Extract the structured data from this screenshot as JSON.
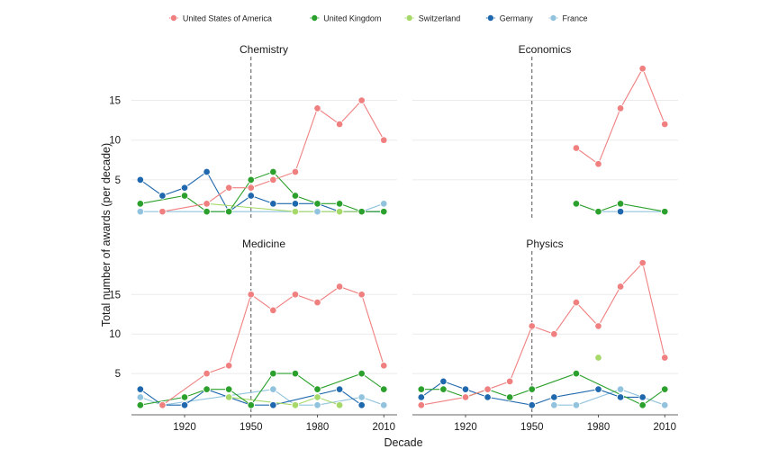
{
  "chart_data": {
    "type": "line",
    "xlabel": "Decade",
    "ylabel": "Total number of awards (per decade)",
    "legend_position": "top",
    "grid": "horizontal",
    "reference_line": {
      "x": 1950,
      "style": "dashed"
    },
    "x_ticks": [
      1920,
      1950,
      1980,
      2010
    ],
    "y_ticks": [
      5,
      10,
      15
    ],
    "xlim": [
      1896,
      2016
    ],
    "ylim": [
      0,
      20.5
    ],
    "series": [
      {
        "name": "United States of America",
        "color": "#f08080"
      },
      {
        "name": "United Kingdom",
        "color": "#2ca02c"
      },
      {
        "name": "Switzerland",
        "color": "#a6d96a"
      },
      {
        "name": "Germany",
        "color": "#1f68ad"
      },
      {
        "name": "France",
        "color": "#91c3de"
      }
    ],
    "panels": [
      {
        "title": "Chemistry",
        "data": {
          "United States of America": [
            [
              1910,
              1
            ],
            [
              1930,
              2
            ],
            [
              1940,
              4
            ],
            [
              1950,
              4
            ],
            [
              1960,
              5
            ],
            [
              1970,
              6
            ],
            [
              1980,
              14
            ],
            [
              1990,
              12
            ],
            [
              2000,
              15
            ],
            [
              2010,
              10
            ]
          ],
          "United Kingdom": [
            [
              1900,
              2
            ],
            [
              1920,
              3
            ],
            [
              1930,
              1
            ],
            [
              1940,
              1
            ],
            [
              1950,
              5
            ],
            [
              1960,
              6
            ],
            [
              1970,
              3
            ],
            [
              1980,
              2
            ],
            [
              1990,
              2
            ],
            [
              2000,
              1
            ],
            [
              2010,
              1
            ]
          ],
          "Switzerland": [
            [
              1930,
              2
            ],
            [
              1970,
              1
            ],
            [
              1990,
              1
            ],
            [
              2000,
              1
            ]
          ],
          "Germany": [
            [
              1900,
              5
            ],
            [
              1910,
              3
            ],
            [
              1920,
              4
            ],
            [
              1930,
              6
            ],
            [
              1940,
              1
            ],
            [
              1950,
              3
            ],
            [
              1960,
              2
            ],
            [
              1970,
              2
            ],
            [
              1980,
              2
            ],
            [
              1990,
              1
            ],
            [
              2000,
              1
            ],
            [
              2010,
              1
            ]
          ],
          "France": [
            [
              1900,
              1
            ],
            [
              1980,
              1
            ],
            [
              1990,
              1
            ],
            [
              2000,
              1
            ],
            [
              2010,
              2
            ]
          ]
        }
      },
      {
        "title": "Economics",
        "data": {
          "United States of America": [
            [
              1970,
              9
            ],
            [
              1980,
              7
            ],
            [
              1990,
              14
            ],
            [
              2000,
              19
            ],
            [
              2010,
              12
            ]
          ],
          "United Kingdom": [
            [
              1970,
              2
            ],
            [
              1980,
              1
            ],
            [
              1990,
              2
            ],
            [
              2010,
              1
            ]
          ],
          "Switzerland": [],
          "Germany": [
            [
              1990,
              1
            ]
          ],
          "France": [
            [
              1980,
              1
            ],
            [
              2010,
              1
            ]
          ]
        }
      },
      {
        "title": "Medicine",
        "data": {
          "United States of America": [
            [
              1910,
              1
            ],
            [
              1930,
              5
            ],
            [
              1940,
              6
            ],
            [
              1950,
              15
            ],
            [
              1960,
              13
            ],
            [
              1970,
              15
            ],
            [
              1980,
              14
            ],
            [
              1990,
              16
            ],
            [
              2000,
              15
            ],
            [
              2010,
              6
            ]
          ],
          "United Kingdom": [
            [
              1900,
              1
            ],
            [
              1920,
              2
            ],
            [
              1930,
              3
            ],
            [
              1940,
              3
            ],
            [
              1950,
              1
            ],
            [
              1960,
              5
            ],
            [
              1970,
              5
            ],
            [
              1980,
              3
            ],
            [
              2000,
              5
            ],
            [
              2010,
              3
            ]
          ],
          "Switzerland": [
            [
              1940,
              2
            ],
            [
              1970,
              1
            ],
            [
              1980,
              2
            ],
            [
              1990,
              1
            ]
          ],
          "Germany": [
            [
              1900,
              3
            ],
            [
              1910,
              1
            ],
            [
              1920,
              1
            ],
            [
              1930,
              3
            ],
            [
              1950,
              1
            ],
            [
              1960,
              1
            ],
            [
              1990,
              3
            ],
            [
              2000,
              1
            ]
          ],
          "France": [
            [
              1900,
              2
            ],
            [
              1910,
              1
            ],
            [
              1960,
              3
            ],
            [
              1970,
              1
            ],
            [
              1980,
              1
            ],
            [
              2000,
              2
            ],
            [
              2010,
              1
            ]
          ]
        }
      },
      {
        "title": "Physics",
        "data": {
          "United States of America": [
            [
              1900,
              1
            ],
            [
              1920,
              2
            ],
            [
              1930,
              3
            ],
            [
              1940,
              4
            ],
            [
              1950,
              11
            ],
            [
              1960,
              10
            ],
            [
              1970,
              14
            ],
            [
              1980,
              11
            ],
            [
              1990,
              16
            ],
            [
              2000,
              19
            ],
            [
              2010,
              7
            ]
          ],
          "United Kingdom": [
            [
              1900,
              3
            ],
            [
              1910,
              3
            ],
            [
              1920,
              2
            ],
            [
              1930,
              3
            ],
            [
              1940,
              2
            ],
            [
              1950,
              3
            ],
            [
              1970,
              5
            ],
            [
              2000,
              1
            ],
            [
              2010,
              3
            ]
          ],
          "Switzerland": [
            [
              1980,
              7
            ]
          ],
          "Germany": [
            [
              1900,
              2
            ],
            [
              1910,
              4
            ],
            [
              1920,
              3
            ],
            [
              1930,
              2
            ],
            [
              1950,
              1
            ],
            [
              1960,
              2
            ],
            [
              1980,
              3
            ],
            [
              1990,
              2
            ],
            [
              2000,
              2
            ]
          ],
          "France": [
            [
              1960,
              1
            ],
            [
              1970,
              1
            ],
            [
              1990,
              3
            ],
            [
              2010,
              1
            ]
          ]
        }
      }
    ]
  }
}
